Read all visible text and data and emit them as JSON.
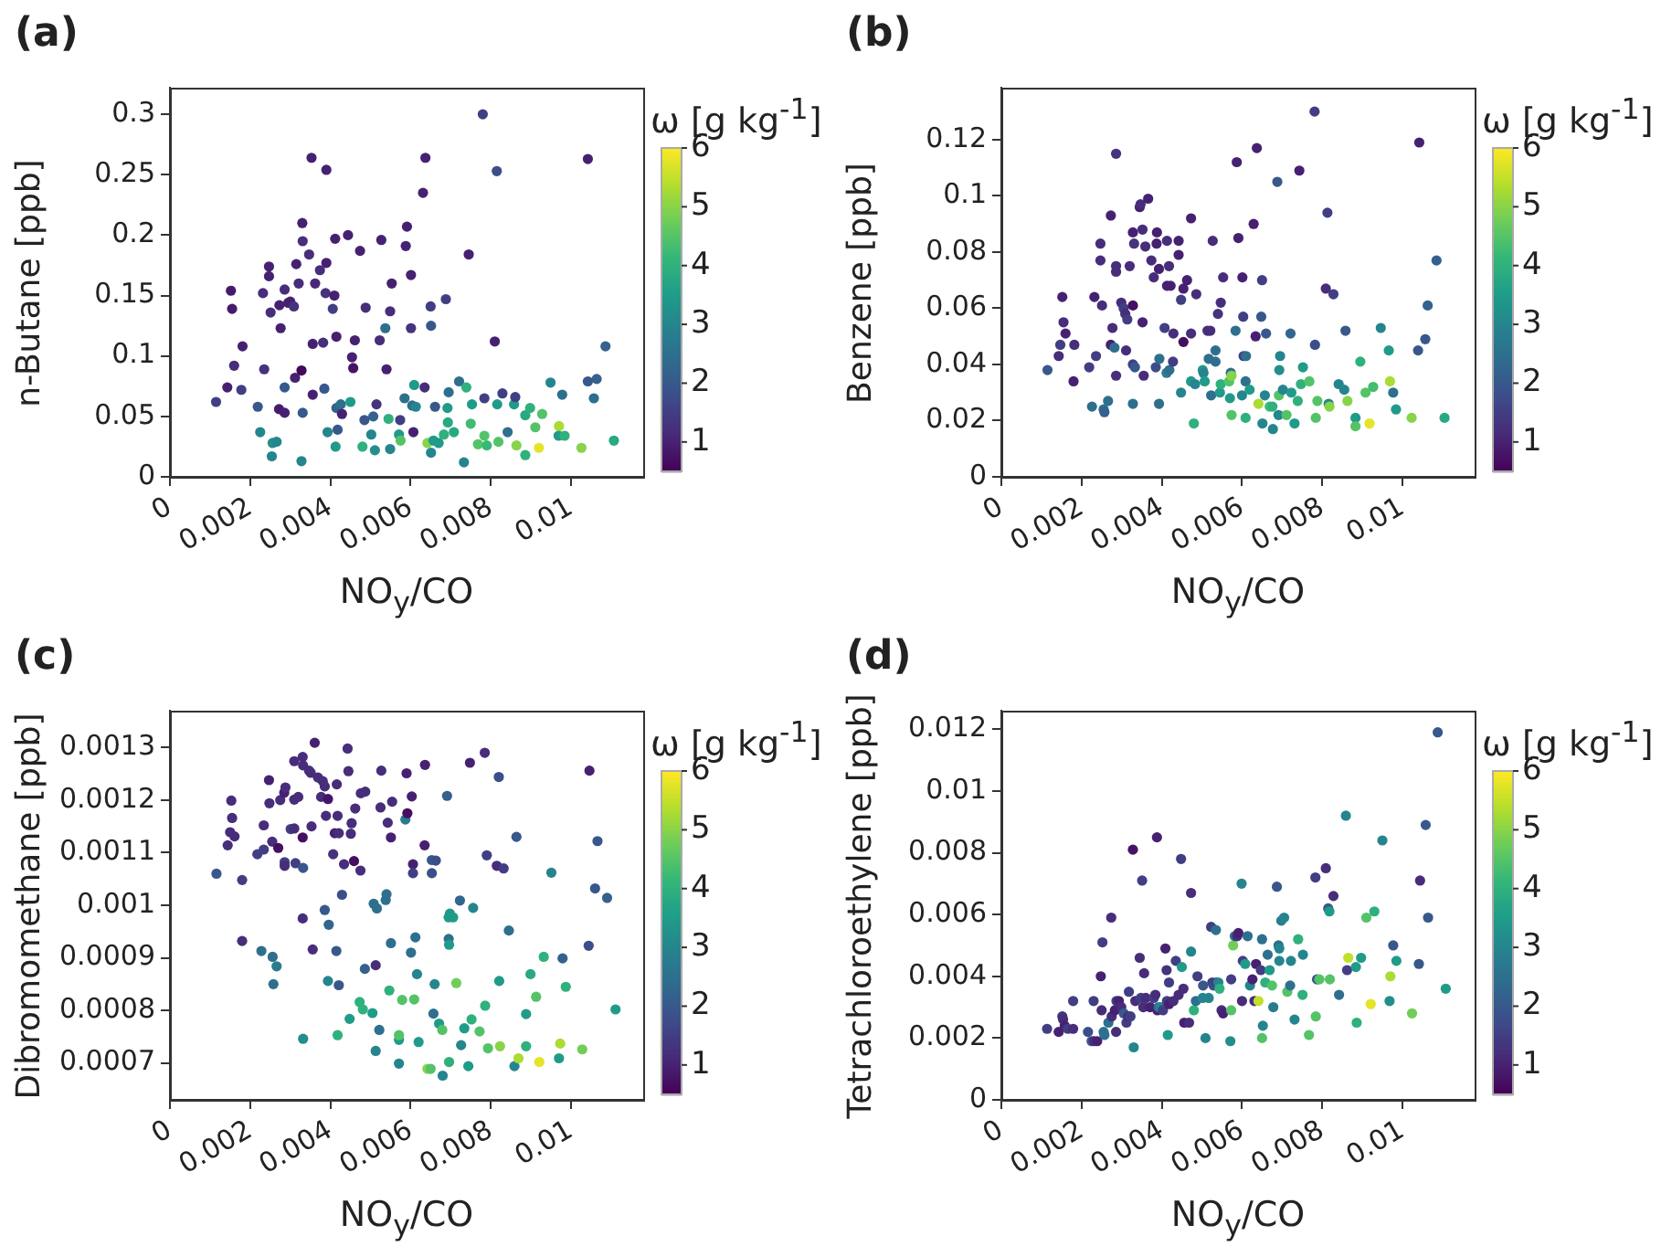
{
  "chart_data": [
    {
      "type": "scatter",
      "title": "(a)",
      "xlabel": "NO$_{y}$/CO",
      "ylabel": "n-Butane [ppb]",
      "clabel": "ω [g kg$^{-1}$]",
      "xlim": [
        0,
        0.0118
      ],
      "xticks": [
        0,
        0.002,
        0.004,
        0.006,
        0.008,
        0.01
      ],
      "ylim": [
        0,
        0.322
      ],
      "yticks": [
        0,
        0.05,
        0.1,
        0.15,
        0.2,
        0.25,
        0.3
      ],
      "clim": [
        0.5,
        6
      ],
      "cticks": [
        1,
        2,
        3,
        4,
        5,
        6
      ],
      "x": [
        0.00115,
        0.00152,
        0.00155,
        0.0016,
        0.00143,
        0.00181,
        0.00178,
        0.00219,
        0.00225,
        0.00232,
        0.00235,
        0.00247,
        0.00247,
        0.00251,
        0.00254,
        0.00256,
        0.00266,
        0.00276,
        0.00273,
        0.00272,
        0.00286,
        0.00286,
        0.00286,
        0.00295,
        0.003,
        0.00309,
        0.00312,
        0.00315,
        0.00321,
        0.0033,
        0.00331,
        0.00328,
        0.00328,
        0.00331,
        0.00347,
        0.00353,
        0.00356,
        0.00356,
        0.00362,
        0.00374,
        0.00382,
        0.00385,
        0.00388,
        0.0039,
        0.0039,
        0.00393,
        0.00406,
        0.0041,
        0.00412,
        0.00415,
        0.00413,
        0.00418,
        0.00415,
        0.00426,
        0.00429,
        0.00444,
        0.0045,
        0.00454,
        0.00457,
        0.00461,
        0.00474,
        0.0048,
        0.00485,
        0.00488,
        0.00502,
        0.00507,
        0.00511,
        0.00515,
        0.00523,
        0.00527,
        0.00537,
        0.0054,
        0.00545,
        0.00549,
        0.00553,
        0.00549,
        0.00571,
        0.00575,
        0.00574,
        0.00585,
        0.00588,
        0.00591,
        0.00601,
        0.00601,
        0.00607,
        0.00609,
        0.00604,
        0.00613,
        0.00631,
        0.00637,
        0.00635,
        0.00642,
        0.0065,
        0.00651,
        0.00651,
        0.00657,
        0.00661,
        0.0067,
        0.00683,
        0.00688,
        0.00693,
        0.00695,
        0.00692,
        0.00708,
        0.00721,
        0.00733,
        0.00739,
        0.00745,
        0.0075,
        0.00753,
        0.00768,
        0.0078,
        0.00784,
        0.00784,
        0.0079,
        0.0081,
        0.00815,
        0.00816,
        0.00819,
        0.00829,
        0.00842,
        0.00858,
        0.00861,
        0.00864,
        0.00886,
        0.00886,
        0.00898,
        0.00911,
        0.0092,
        0.00928,
        0.00949,
        0.0097,
        0.00969,
        0.00978,
        0.00984,
        0.01026,
        0.01042,
        0.01042,
        0.01057,
        0.01064,
        0.01086,
        0.01107
      ],
      "values": [
        0.062,
        0.154,
        0.139,
        0.092,
        0.074,
        0.108,
        0.072,
        0.058,
        0.037,
        0.152,
        0.089,
        0.174,
        0.166,
        0.136,
        0.017,
        0.028,
        0.029,
        0.123,
        0.142,
        0.056,
        0.053,
        0.155,
        0.074,
        0.144,
        0.145,
        0.141,
        0.082,
        0.176,
        0.16,
        0.21,
        0.195,
        0.088,
        0.013,
        0.053,
        0.184,
        0.264,
        0.11,
        0.068,
        0.16,
        0.171,
        0.111,
        0.073,
        0.152,
        0.254,
        0.177,
        0.037,
        0.139,
        0.15,
        0.197,
        0.116,
        0.025,
        0.039,
        0.057,
        0.06,
        0.052,
        0.2,
        0.062,
        0.099,
        0.09,
        0.113,
        0.187,
        0.025,
        0.047,
        0.14,
        0.035,
        0.05,
        0.022,
        0.06,
        0.113,
        0.196,
        0.123,
        0.089,
        0.048,
        0.137,
        0.16,
        0.023,
        0.035,
        0.03,
        0.047,
        0.065,
        0.191,
        0.207,
        0.167,
        0.123,
        0.037,
        0.076,
        0.059,
        0.058,
        0.235,
        0.264,
        0.074,
        0.028,
        0.141,
        0.125,
        0.02,
        0.03,
        0.058,
        0.028,
        0.035,
        0.147,
        0.045,
        0.07,
        0.057,
        0.037,
        0.079,
        0.012,
        0.074,
        0.184,
        0.044,
        0.06,
        0.027,
        0.3,
        0.034,
        0.065,
        0.026,
        0.112,
        0.253,
        0.06,
        0.029,
        0.069,
        0.037,
        0.06,
        0.066,
        0.026,
        0.018,
        0.051,
        0.057,
        0.041,
        0.024,
        0.052,
        0.078,
        0.042,
        0.034,
        0.068,
        0.034,
        0.024,
        0.263,
        0.079,
        0.065,
        0.081,
        0.108,
        0.03
      ],
      "cvalues": [
        1.5,
        0.9,
        0.9,
        1.2,
        1,
        1,
        1.5,
        2,
        3,
        1.2,
        1.3,
        1,
        1,
        1.2,
        3,
        3.2,
        3,
        1,
        1,
        0.9,
        1,
        1.2,
        2,
        1,
        1,
        1.3,
        1,
        1,
        1.2,
        1,
        1.2,
        0.6,
        3,
        2,
        1.2,
        1,
        1,
        1,
        1.1,
        1.2,
        1.2,
        2,
        1.3,
        1,
        1,
        3,
        1.5,
        1,
        1,
        1,
        3.5,
        2,
        2.2,
        2.5,
        1,
        1,
        3.5,
        1,
        0.8,
        1,
        1,
        4,
        2,
        1.2,
        3,
        2.2,
        3.2,
        1.3,
        1.2,
        1,
        2.5,
        1,
        4,
        1.2,
        1,
        3,
        3.5,
        4.5,
        1.5,
        2.5,
        1,
        1,
        1,
        1.3,
        1,
        3.5,
        2.5,
        3,
        1,
        1,
        1.2,
        5,
        1.5,
        2,
        3,
        3.5,
        2,
        3.5,
        4,
        1.5,
        3.8,
        2.5,
        3.5,
        3.8,
        2.5,
        3,
        4,
        1,
        4.3,
        3.5,
        4.5,
        1.5,
        4.5,
        1.5,
        4.2,
        1,
        1.8,
        3.5,
        4.5,
        1.5,
        2.5,
        3.5,
        1.5,
        5,
        4,
        3.8,
        4,
        4.5,
        5.8,
        4.5,
        3,
        5.3,
        3.5,
        2.5,
        4,
        5,
        1,
        2,
        2.5,
        2.2,
        2.2,
        3.8
      ]
    },
    {
      "type": "scatter",
      "title": "(b)",
      "xlabel": "NO$_{y}$/CO",
      "ylabel": "Benzene [ppb]",
      "clabel": "ω [g kg$^{-1}$]",
      "xlim": [
        0,
        0.0118
      ],
      "xticks": [
        0,
        0.002,
        0.004,
        0.006,
        0.008,
        0.01
      ],
      "ylim": [
        0,
        0.1385
      ],
      "yticks": [
        0,
        0.02,
        0.04,
        0.06,
        0.08,
        0.1,
        0.12
      ],
      "clim": [
        0.5,
        6
      ],
      "cticks": [
        1,
        2,
        3,
        4,
        5,
        6
      ],
      "x": [
        0.00115,
        0.00143,
        0.00147,
        0.00152,
        0.00155,
        0.0016,
        0.0018,
        0.00182,
        0.00219,
        0.00226,
        0.00232,
        0.00236,
        0.00247,
        0.00247,
        0.00251,
        0.00255,
        0.00257,
        0.00266,
        0.00273,
        0.00273,
        0.00277,
        0.00282,
        0.00286,
        0.00286,
        0.00286,
        0.00286,
        0.00299,
        0.00305,
        0.00309,
        0.00311,
        0.00314,
        0.0032,
        0.00328,
        0.00328,
        0.00328,
        0.00331,
        0.00328,
        0.00333,
        0.00345,
        0.00347,
        0.00352,
        0.00355,
        0.00352,
        0.00359,
        0.00366,
        0.00374,
        0.0038,
        0.00385,
        0.00387,
        0.00388,
        0.00393,
        0.00393,
        0.00394,
        0.00407,
        0.00412,
        0.00413,
        0.00413,
        0.00418,
        0.00419,
        0.00422,
        0.00428,
        0.00429,
        0.00442,
        0.00442,
        0.00448,
        0.00448,
        0.00454,
        0.00454,
        0.00463,
        0.00473,
        0.00473,
        0.00473,
        0.0048,
        0.00483,
        0.00486,
        0.00502,
        0.00504,
        0.00507,
        0.00514,
        0.00517,
        0.00521,
        0.00523,
        0.00527,
        0.00534,
        0.00534,
        0.0054,
        0.00545,
        0.00547,
        0.00547,
        0.00553,
        0.00568,
        0.00572,
        0.0057,
        0.00574,
        0.00574,
        0.00584,
        0.00587,
        0.00591,
        0.006,
        0.00601,
        0.00603,
        0.00604,
        0.00609,
        0.00609,
        0.0061,
        0.00619,
        0.00629,
        0.00634,
        0.00637,
        0.00641,
        0.00648,
        0.0065,
        0.00651,
        0.00657,
        0.0066,
        0.00669,
        0.00676,
        0.00677,
        0.00688,
        0.00691,
        0.00692,
        0.00693,
        0.00695,
        0.00702,
        0.00711,
        0.00721,
        0.00723,
        0.00731,
        0.00739,
        0.00743,
        0.00747,
        0.00752,
        0.00768,
        0.00781,
        0.00782,
        0.00784,
        0.00788,
        0.00809,
        0.00813,
        0.00816,
        0.00818,
        0.00828,
        0.00841,
        0.00855,
        0.00858,
        0.00863,
        0.00883,
        0.00883,
        0.00895,
        0.00908,
        0.00918,
        0.00927,
        0.00946,
        0.00966,
        0.00969,
        0.00977,
        0.00984,
        0.01023,
        0.01039,
        0.01042,
        0.01057,
        0.01063,
        0.01085,
        0.01105
      ],
      "values": [
        0.038,
        0.043,
        0.047,
        0.064,
        0.055,
        0.051,
        0.034,
        0.047,
        0.039,
        0.025,
        0.064,
        0.043,
        0.083,
        0.077,
        0.061,
        0.024,
        0.023,
        0.027,
        0.093,
        0.047,
        0.053,
        0.046,
        0.115,
        0.073,
        0.075,
        0.036,
        0.062,
        0.06,
        0.058,
        0.045,
        0.056,
        0.075,
        0.087,
        0.061,
        0.04,
        0.083,
        0.026,
        0.039,
        0.096,
        0.097,
        0.088,
        0.036,
        0.055,
        0.082,
        0.099,
        0.077,
        0.071,
        0.039,
        0.083,
        0.087,
        0.074,
        0.026,
        0.042,
        0.053,
        0.037,
        0.084,
        0.068,
        0.075,
        0.038,
        0.068,
        0.041,
        0.051,
        0.084,
        0.079,
        0.063,
        0.03,
        0.048,
        0.067,
        0.07,
        0.092,
        0.051,
        0.034,
        0.019,
        0.033,
        0.065,
        0.038,
        0.037,
        0.034,
        0.052,
        0.042,
        0.052,
        0.029,
        0.084,
        0.045,
        0.041,
        0.058,
        0.03,
        0.062,
        0.033,
        0.071,
        0.034,
        0.037,
        0.028,
        0.022,
        0.036,
        0.052,
        0.112,
        0.085,
        0.029,
        0.071,
        0.057,
        0.043,
        0.034,
        0.021,
        0.043,
        0.031,
        0.09,
        0.05,
        0.117,
        0.026,
        0.057,
        0.07,
        0.019,
        0.029,
        0.051,
        0.025,
        0.025,
        0.017,
        0.105,
        0.022,
        0.029,
        0.038,
        0.043,
        0.031,
        0.022,
        0.051,
        0.03,
        0.019,
        0.027,
        0.109,
        0.033,
        0.039,
        0.034,
        0.13,
        0.047,
        0.021,
        0.027,
        0.067,
        0.094,
        0.026,
        0.025,
        0.065,
        0.033,
        0.031,
        0.052,
        0.027,
        0.021,
        0.018,
        0.041,
        0.03,
        0.019,
        0.032,
        0.053,
        0.045,
        0.034,
        0.03,
        0.024,
        0.021,
        0.045,
        0.119,
        0.049,
        0.061,
        0.077,
        0.021
      ],
      "cvalues": [
        2,
        1.2,
        1.5,
        1,
        1.2,
        1,
        1,
        1.2,
        1.5,
        2.5,
        1,
        1.5,
        1.2,
        1.2,
        1.2,
        2.5,
        2.2,
        2.5,
        1,
        1,
        1.2,
        2.5,
        1.3,
        1.2,
        1.2,
        1.2,
        1.2,
        1.5,
        1.2,
        1.2,
        1.5,
        1.2,
        1,
        0.7,
        1.5,
        1.3,
        2.5,
        2,
        1,
        1.2,
        1.2,
        1.2,
        1,
        1.2,
        1,
        1.2,
        1.2,
        1.8,
        1,
        1,
        1,
        2.5,
        2.5,
        1.5,
        2.8,
        1.2,
        1,
        1.2,
        2.5,
        1,
        1.5,
        1.2,
        1,
        1,
        1.5,
        3,
        0.7,
        1,
        1,
        1,
        1.2,
        3.5,
        4,
        3,
        1.2,
        3.5,
        3,
        3.5,
        1.2,
        2.5,
        1.2,
        2.5,
        1.2,
        2.5,
        2.5,
        1.3,
        3.5,
        1.2,
        4,
        1.2,
        4.5,
        2.5,
        3.5,
        4.5,
        5,
        2.5,
        1,
        1,
        3,
        1,
        1.5,
        1.5,
        2.5,
        4,
        2.5,
        3.5,
        1,
        1,
        1,
        5.3,
        2,
        1.5,
        3,
        3,
        2,
        4.3,
        4,
        3,
        2,
        3,
        4.5,
        3.2,
        3,
        3,
        4.5,
        2.3,
        3.5,
        3.5,
        4,
        1,
        4,
        3.5,
        4.5,
        1.5,
        1.8,
        4.5,
        4.5,
        1.2,
        1.5,
        3,
        5,
        1.5,
        3,
        3,
        2,
        5,
        3.5,
        4.5,
        4,
        4.5,
        5.8,
        4.3,
        3,
        3.5,
        5.3,
        2.5,
        3.5,
        5,
        2,
        1,
        2,
        2.2,
        2.2,
        3.8
      ]
    },
    {
      "type": "scatter",
      "title": "(c)",
      "xlabel": "NO$_{y}$/CO",
      "ylabel": "Dibromomethane [ppb]",
      "clabel": "ω [g kg$^{-1}$]",
      "xlim": [
        0,
        0.0118
      ],
      "xticks": [
        0,
        0.002,
        0.004,
        0.006,
        0.008,
        0.01
      ],
      "ylim": [
        0.00063,
        0.00137
      ],
      "yticks": [
        0.0007,
        0.0008,
        0.0009,
        0.001,
        0.0011,
        0.0012,
        0.0013
      ],
      "clim": [
        0.5,
        6
      ],
      "cticks": [
        1,
        2,
        3,
        4,
        5,
        6
      ],
      "x": [
        0.00116,
        0.00144,
        0.0015,
        0.00153,
        0.00155,
        0.00161,
        0.0018,
        0.0018,
        0.00218,
        0.00228,
        0.00234,
        0.00234,
        0.00247,
        0.00248,
        0.00255,
        0.00256,
        0.00258,
        0.00266,
        0.0027,
        0.00275,
        0.00285,
        0.00288,
        0.00286,
        0.00286,
        0.00301,
        0.0031,
        0.0031,
        0.0031,
        0.00313,
        0.0032,
        0.00331,
        0.00332,
        0.00331,
        0.00331,
        0.00332,
        0.00332,
        0.00347,
        0.00351,
        0.00353,
        0.00356,
        0.00361,
        0.00369,
        0.00377,
        0.00381,
        0.00386,
        0.00386,
        0.00389,
        0.00394,
        0.00396,
        0.00394,
        0.00407,
        0.00411,
        0.00415,
        0.00416,
        0.00418,
        0.00418,
        0.00421,
        0.00421,
        0.00429,
        0.00434,
        0.00443,
        0.00445,
        0.00448,
        0.00451,
        0.00453,
        0.00459,
        0.00462,
        0.00473,
        0.00475,
        0.00476,
        0.00481,
        0.00486,
        0.00487,
        0.00505,
        0.00508,
        0.00513,
        0.00513,
        0.00516,
        0.00522,
        0.00525,
        0.00527,
        0.00538,
        0.0054,
        0.00543,
        0.00547,
        0.00551,
        0.00554,
        0.00551,
        0.00571,
        0.00571,
        0.00571,
        0.00579,
        0.00587,
        0.0059,
        0.00592,
        0.00601,
        0.00603,
        0.00606,
        0.00606,
        0.00609,
        0.00612,
        0.00616,
        0.0062,
        0.00635,
        0.00636,
        0.00642,
        0.0065,
        0.00653,
        0.00653,
        0.00657,
        0.0066,
        0.00663,
        0.00671,
        0.00679,
        0.0068,
        0.00691,
        0.00695,
        0.00695,
        0.00698,
        0.00696,
        0.00696,
        0.00706,
        0.00714,
        0.00723,
        0.00726,
        0.00734,
        0.00744,
        0.00748,
        0.00752,
        0.00756,
        0.00772,
        0.00785,
        0.00786,
        0.0079,
        0.00793,
        0.00815,
        0.0082,
        0.00821,
        0.00823,
        0.00832,
        0.00845,
        0.00859,
        0.00864,
        0.00869,
        0.00888,
        0.00888,
        0.00899,
        0.00913,
        0.00921,
        0.00932,
        0.00951,
        0.0097,
        0.00973,
        0.00979,
        0.00987,
        0.01028,
        0.01044,
        0.01046,
        0.0106,
        0.01066,
        0.0109,
        0.01111
      ],
      "values": [
        0.00106,
        0.001114,
        0.001139,
        0.001199,
        0.001166,
        0.001131,
        0.001048,
        0.000932,
        0.001097,
        0.000913,
        0.001106,
        0.001152,
        0.001238,
        0.001194,
        0.001121,
        0.000902,
        0.00085,
        0.000884,
        0.001109,
        0.0012,
        0.001214,
        0.001224,
        0.001082,
        0.001075,
        0.001145,
        0.001146,
        0.001201,
        0.001274,
        0.00108,
        0.001206,
        0.001282,
        0.001266,
        0.001129,
        0.000975,
        0.001071,
        0.000746,
        0.001256,
        0.001252,
        0.00115,
        0.000916,
        0.001309,
        0.001243,
        0.001206,
        0.001236,
        0.001226,
        0.000991,
        0.00117,
        0.001202,
        0.000963,
        0.000856,
        0.001097,
        0.001137,
        0.000913,
        0.00123,
        0.00117,
        0.000753,
        0.000848,
        0.001137,
        0.00102,
        0.001078,
        0.001298,
        0.001255,
        0.000784,
        0.001136,
        0.001156,
        0.001084,
        0.001184,
        0.000816,
        0.001066,
        0.001213,
        0.000802,
        0.000879,
        0.001216,
        0.000795,
        0.001003,
        0.000886,
        0.000723,
        0.000994,
        0.000763,
        0.001186,
        0.001256,
        0.00101,
        0.001021,
        0.001157,
        0.000838,
        0.000928,
        0.001197,
        0.001129,
        0.000744,
        0.000699,
        0.000753,
        0.00082,
        0.001163,
        0.001251,
        0.001175,
        0.00091,
        0.001207,
        0.001078,
        0.001061,
        0.000821,
        0.000939,
        0.000869,
        0.00074,
        0.001114,
        0.001267,
        0.000689,
        0.000689,
        0.001061,
        0.001086,
        0.000794,
        0.00085,
        0.001085,
        0.000775,
        0.000763,
        0.000676,
        0.001208,
        0.000936,
        0.000977,
        0.000984,
        0.000925,
        0.000702,
        0.000977,
        0.000852,
        0.001009,
        0.000734,
        0.000766,
        0.000694,
        0.001271,
        0.000783,
        0.000995,
        0.00076,
        0.00129,
        0.000809,
        0.001095,
        0.000728,
        0.001075,
        0.001244,
        0.000856,
        0.000732,
        0.00107,
        0.000952,
        0.000694,
        0.00113,
        0.000709,
        0.000793,
        0.000732,
        0.000869,
        0.000826,
        0.000702,
        0.000902,
        0.001062,
        0.000709,
        0.000737,
        0.000899,
        0.000845,
        0.000726,
        0.000923,
        0.001256,
        0.001032,
        0.001122,
        0.001014,
        0.000802
      ],
      "cvalues": [
        2,
        1.2,
        1.2,
        1.2,
        1.2,
        1.2,
        1.5,
        1.2,
        1.5,
        2.5,
        1.5,
        1.2,
        1,
        1.2,
        1.2,
        2.5,
        2.5,
        2.8,
        0.7,
        1.2,
        1,
        1.2,
        1.5,
        1.2,
        1.5,
        1.2,
        1.2,
        1.2,
        1.5,
        1.2,
        1.2,
        1.2,
        0.7,
        1.2,
        2,
        3.2,
        1.2,
        1.2,
        1.2,
        1.2,
        1,
        1.2,
        1.2,
        1.2,
        1.2,
        2,
        1.2,
        0.8,
        2.3,
        3,
        1.3,
        1,
        2,
        1.2,
        1.2,
        4,
        2,
        1.2,
        1.8,
        1.2,
        1.2,
        1.2,
        3.5,
        1.2,
        1.2,
        0.7,
        1.2,
        4,
        1.2,
        1.2,
        4,
        2.2,
        1.2,
        3.5,
        2.5,
        1.2,
        3,
        2.5,
        2.5,
        1.2,
        1.2,
        2.5,
        2.5,
        1.2,
        4,
        2.5,
        1.2,
        1,
        3.5,
        3,
        4.5,
        4.5,
        2.8,
        1,
        0.7,
        2.5,
        1,
        1,
        1.5,
        4.5,
        2.5,
        3,
        3.5,
        1,
        1,
        5,
        4.5,
        1.8,
        2,
        2.5,
        3,
        1.8,
        3.5,
        4.5,
        3,
        2.2,
        2.5,
        3.5,
        3.5,
        3.5,
        4,
        3.5,
        4.8,
        2.3,
        3,
        3.5,
        3.5,
        1,
        4,
        3,
        4.5,
        1.2,
        4,
        1.5,
        4.5,
        1.2,
        1.8,
        3.5,
        5,
        1.5,
        2.5,
        3,
        2,
        5.3,
        3.5,
        4,
        3.8,
        4.5,
        5.8,
        4,
        3,
        3.5,
        5.3,
        2.2,
        4,
        4.8,
        1.8,
        1,
        2,
        2,
        2.2,
        3.5
      ]
    },
    {
      "type": "scatter",
      "title": "(d)",
      "xlabel": "NO$_{y}$/CO",
      "ylabel": "Tetrachloroethylene [ppb]",
      "clabel": "ω [g kg$^{-1}$]",
      "xlim": [
        0,
        0.0118
      ],
      "xticks": [
        0,
        0.002,
        0.004,
        0.006,
        0.008,
        0.01
      ],
      "ylim": [
        0,
        0.0126
      ],
      "yticks": [
        0,
        0.002,
        0.004,
        0.006,
        0.008,
        0.01,
        0.012
      ],
      "clim": [
        0.5,
        6
      ],
      "cticks": [
        1,
        2,
        3,
        4,
        5,
        6
      ],
      "x": [
        0.00114,
        0.00143,
        0.00152,
        0.00154,
        0.00158,
        0.00166,
        0.00179,
        0.00179,
        0.00216,
        0.00225,
        0.0023,
        0.00231,
        0.00239,
        0.00248,
        0.0025,
        0.00252,
        0.00255,
        0.00257,
        0.00267,
        0.00274,
        0.00275,
        0.00283,
        0.00286,
        0.00287,
        0.00293,
        0.00299,
        0.00305,
        0.00312,
        0.00316,
        0.00318,
        0.00322,
        0.00328,
        0.0033,
        0.00334,
        0.00345,
        0.00348,
        0.00351,
        0.00354,
        0.00356,
        0.0036,
        0.00371,
        0.0038,
        0.00384,
        0.00388,
        0.00389,
        0.00392,
        0.00397,
        0.00403,
        0.00409,
        0.00412,
        0.00413,
        0.00415,
        0.00418,
        0.00418,
        0.00429,
        0.00435,
        0.00442,
        0.00448,
        0.0045,
        0.00454,
        0.00456,
        0.00468,
        0.00473,
        0.00473,
        0.0048,
        0.00485,
        0.00489,
        0.00502,
        0.00503,
        0.00509,
        0.00517,
        0.00523,
        0.00526,
        0.00529,
        0.00535,
        0.00536,
        0.00541,
        0.00544,
        0.00549,
        0.00553,
        0.00573,
        0.00573,
        0.00571,
        0.00578,
        0.00582,
        0.00588,
        0.00591,
        0.00599,
        0.006,
        0.00602,
        0.00608,
        0.00614,
        0.0062,
        0.00626,
        0.00631,
        0.00635,
        0.00641,
        0.00647,
        0.0065,
        0.00652,
        0.0065,
        0.00658,
        0.00664,
        0.00669,
        0.00675,
        0.00678,
        0.00687,
        0.00691,
        0.00693,
        0.00693,
        0.00698,
        0.00705,
        0.00713,
        0.0072,
        0.00722,
        0.00731,
        0.0074,
        0.00751,
        0.00752,
        0.00767,
        0.00783,
        0.00784,
        0.00787,
        0.00793,
        0.00809,
        0.00815,
        0.00818,
        0.00819,
        0.00828,
        0.00842,
        0.00859,
        0.00862,
        0.00865,
        0.00884,
        0.00886,
        0.00897,
        0.0091,
        0.0093,
        0.00921,
        0.0095,
        0.0097,
        0.00968,
        0.00977,
        0.00985,
        0.01024,
        0.01041,
        0.01044,
        0.01058,
        0.01064,
        0.01088,
        0.01108
      ],
      "values": [
        0.0023,
        0.0022,
        0.0027,
        0.0026,
        0.0024,
        0.0023,
        0.0023,
        0.0032,
        0.0022,
        0.0019,
        0.0032,
        0.0019,
        0.0019,
        0.004,
        0.0029,
        0.0051,
        0.0022,
        0.0021,
        0.0025,
        0.0059,
        0.0027,
        0.0029,
        0.0022,
        0.0032,
        0.0032,
        0.003,
        0.0028,
        0.0025,
        0.0027,
        0.0035,
        0.0027,
        0.0081,
        0.0017,
        0.0032,
        0.0046,
        0.0033,
        0.0071,
        0.003,
        0.0041,
        0.0033,
        0.003,
        0.0033,
        0.0034,
        0.0085,
        0.0029,
        0.003,
        0.003,
        0.0029,
        0.0049,
        0.0042,
        0.0032,
        0.0021,
        0.0038,
        0.0031,
        0.0032,
        0.0045,
        0.0034,
        0.0078,
        0.0043,
        0.0036,
        0.0025,
        0.0025,
        0.0067,
        0.0048,
        0.0029,
        0.0032,
        0.004,
        0.0033,
        0.0037,
        0.002,
        0.0033,
        0.0056,
        0.0038,
        0.0037,
        0.0055,
        0.0038,
        0.0038,
        0.0036,
        0.0029,
        0.0028,
        0.0039,
        0.0029,
        0.0019,
        0.005,
        0.0053,
        0.0053,
        0.0054,
        0.007,
        0.0032,
        0.0045,
        0.0044,
        0.0053,
        0.0037,
        0.0039,
        0.0032,
        0.0044,
        0.0032,
        0.0042,
        0.0052,
        0.0024,
        0.002,
        0.0038,
        0.0047,
        0.0042,
        0.0037,
        0.003,
        0.0069,
        0.005,
        0.0049,
        0.0045,
        0.0058,
        0.0059,
        0.0035,
        0.0037,
        0.0045,
        0.0026,
        0.0052,
        0.0034,
        0.0047,
        0.0021,
        0.0072,
        0.0027,
        0.0039,
        0.0039,
        0.0075,
        0.0062,
        0.0061,
        0.0039,
        0.0066,
        0.0034,
        0.0092,
        0.0042,
        0.0046,
        0.0043,
        0.0025,
        0.0046,
        0.0059,
        0.0061,
        0.0031,
        0.0084,
        0.004,
        0.0032,
        0.005,
        0.0045,
        0.0028,
        0.0044,
        0.0071,
        0.0089,
        0.0059,
        0.0119,
        0.0036
      ],
      "cvalues": [
        1.5,
        1,
        1.3,
        1.2,
        1,
        1.5,
        1.2,
        1.5,
        1.8,
        2,
        1.5,
        1.2,
        1,
        1,
        1.2,
        1.5,
        2.5,
        2.5,
        2.5,
        1.2,
        1.2,
        1,
        1.2,
        1.5,
        1,
        1.2,
        2,
        1.5,
        1.2,
        1.5,
        1.5,
        0.8,
        3,
        1.2,
        1.2,
        1.5,
        1.5,
        1.2,
        1.2,
        1.2,
        1,
        1.5,
        1.2,
        1,
        1,
        2.5,
        3,
        1.5,
        1,
        1.3,
        1.5,
        3.5,
        1.5,
        1,
        1.2,
        1.5,
        1.2,
        1.5,
        3.5,
        1.2,
        1,
        1.2,
        1.2,
        3,
        4,
        2.5,
        1.5,
        3,
        2,
        3,
        3,
        1.5,
        1.5,
        1.8,
        2.5,
        1.5,
        3,
        4,
        1.2,
        1,
        1.5,
        4.5,
        3.2,
        4.8,
        2.5,
        1.2,
        1,
        3,
        1.2,
        1.5,
        3.5,
        2.5,
        3,
        1,
        1.2,
        1,
        5.5,
        1.5,
        2.5,
        3,
        4.5,
        4,
        2.5,
        3.5,
        4.5,
        2.8,
        2,
        2.5,
        3,
        3,
        2.8,
        3,
        4.5,
        2.5,
        3,
        3,
        4,
        4,
        3,
        4.5,
        1.5,
        4.5,
        2,
        4.5,
        1.2,
        2,
        3.5,
        4.5,
        1.2,
        2.5,
        3,
        1.5,
        5.5,
        3.5,
        4,
        3.5,
        4.5,
        4,
        5.8,
        3,
        5.3,
        3.2,
        2,
        3.5,
        4.8,
        2,
        1.2,
        2,
        2,
        2,
        3.5
      ]
    }
  ]
}
